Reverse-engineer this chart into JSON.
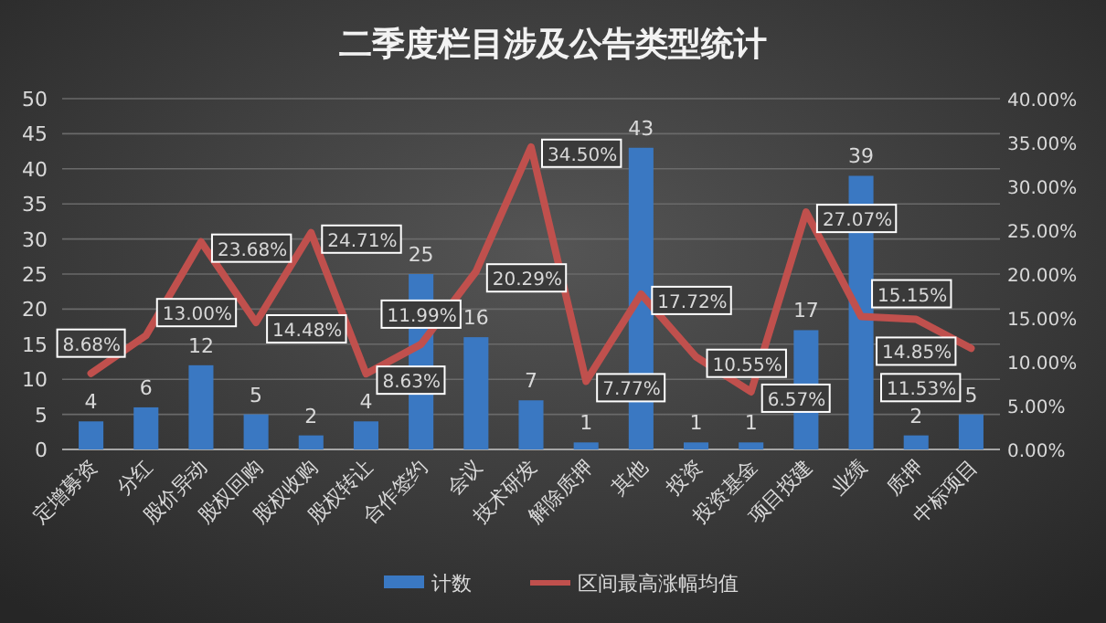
{
  "chart_data": {
    "type": "bar",
    "title": "二季度栏目涉及公告类型统计",
    "categories": [
      "定增募资",
      "分红",
      "股价异动",
      "股权回购",
      "股权收购",
      "股权转让",
      "合作签约",
      "会议",
      "技术研发",
      "解除质押",
      "其他",
      "投资",
      "投资基金",
      "项目投建",
      "业绩",
      "质押",
      "中标项目"
    ],
    "series": [
      {
        "name": "计数",
        "color": "#3a78c2",
        "values": [
          4,
          6,
          12,
          5,
          2,
          4,
          25,
          16,
          7,
          1,
          43,
          1,
          1,
          17,
          39,
          2,
          5
        ],
        "value_labels": [
          "4",
          "6",
          "12",
          "5",
          "2",
          "4",
          "25",
          "16",
          "7",
          "1",
          "43",
          "1",
          "1",
          "17",
          "39",
          "2",
          "5"
        ]
      },
      {
        "name": "区间最高涨幅均值",
        "type": "line",
        "axis": "y2",
        "color": "#c0504d",
        "values": [
          8.68,
          13.0,
          23.68,
          14.48,
          24.71,
          8.63,
          11.99,
          20.29,
          34.5,
          7.77,
          17.72,
          10.55,
          6.57,
          27.07,
          15.15,
          14.85,
          11.53
        ],
        "value_labels": [
          "8.68%",
          "13.00%",
          "23.68%",
          "14.48%",
          "24.71%",
          "8.63%",
          "11.99%",
          "20.29%",
          "34.50%",
          "7.77%",
          "17.72%",
          "10.55%",
          "6.57%",
          "27.07%",
          "15.15%",
          "14.85%",
          "11.53%"
        ]
      }
    ],
    "ylim": [
      0,
      50
    ],
    "yticks": [
      0,
      5,
      10,
      15,
      20,
      25,
      30,
      35,
      40,
      45,
      50
    ],
    "y2lim": [
      0,
      40
    ],
    "y2ticks": [
      {
        "value": 0,
        "label": "0.00%"
      },
      {
        "value": 5,
        "label": "5.00%"
      },
      {
        "value": 10,
        "label": "10.00%"
      },
      {
        "value": 15,
        "label": "15.00%"
      },
      {
        "value": 20,
        "label": "20.00%"
      },
      {
        "value": 25,
        "label": "25.00%"
      },
      {
        "value": 30,
        "label": "30.00%"
      },
      {
        "value": 35,
        "label": "35.00%"
      },
      {
        "value": 40,
        "label": "40.00%"
      }
    ],
    "grid": "y",
    "legend": "bottom"
  }
}
